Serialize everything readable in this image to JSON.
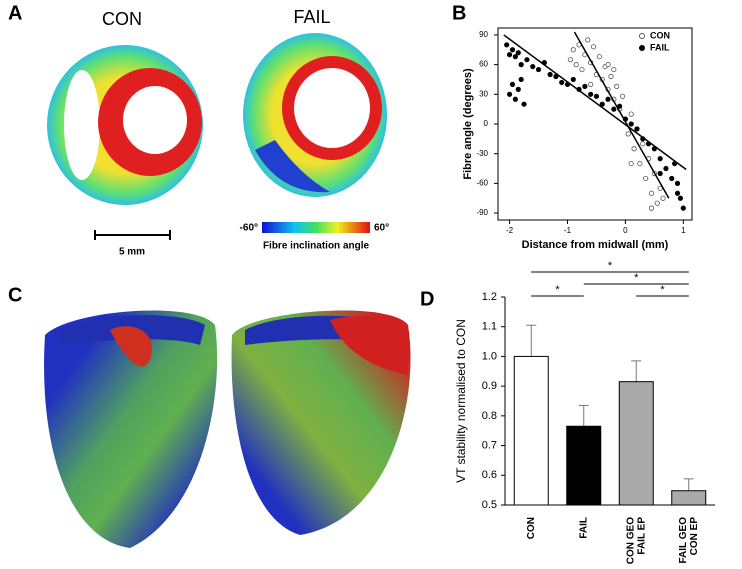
{
  "panels": {
    "a": "A",
    "b": "B",
    "c": "C",
    "d": "D"
  },
  "panel_a": {
    "labels": [
      "CON",
      "FAIL"
    ],
    "scale_bar": "5 mm",
    "colorbar": {
      "min": "-60°",
      "max": "60°",
      "label": "Fibre inclination angle"
    }
  },
  "chart_data": [
    {
      "type": "scatter",
      "xlabel": "Distance from midwall (mm)",
      "ylabel": "Fibre angle (degrees)",
      "xlim": [
        -2.2,
        1.15
      ],
      "ylim": [
        -97,
        97
      ],
      "xticks": [
        -2,
        -1,
        0,
        1
      ],
      "yticks": [
        -90,
        -60,
        -30,
        0,
        30,
        60,
        90
      ],
      "legend": "top-right",
      "series": [
        {
          "name": "CON",
          "color": "#555555",
          "marker": "open",
          "x": [
            -0.95,
            -0.9,
            -0.85,
            -0.8,
            -0.75,
            -0.7,
            -0.65,
            -0.6,
            -0.55,
            -0.5,
            -0.45,
            -0.4,
            -0.35,
            -0.3,
            -0.25,
            -0.2,
            -0.15,
            -0.1,
            -0.05,
            0,
            0.05,
            0.1,
            0.15,
            0.2,
            0.25,
            0.3,
            0.35,
            0.4,
            0.45,
            0.5,
            0.55,
            0.6,
            0.65,
            -0.3,
            0.1,
            0.45,
            -0.6,
            -0.2
          ],
          "y": [
            65,
            75,
            60,
            80,
            55,
            70,
            85,
            62,
            78,
            50,
            68,
            45,
            58,
            35,
            48,
            25,
            38,
            15,
            28,
            5,
            -10,
            10,
            -25,
            -5,
            -40,
            -20,
            -55,
            -35,
            -70,
            -50,
            -80,
            -65,
            -75,
            60,
            -40,
            -85,
            40,
            55
          ]
        },
        {
          "name": "FAIL",
          "color": "#000000",
          "marker": "filled",
          "x": [
            -2.05,
            -2.0,
            -1.95,
            -1.9,
            -1.85,
            -1.8,
            -1.7,
            -1.6,
            -1.5,
            -1.4,
            -1.3,
            -1.2,
            -1.1,
            -1.0,
            -0.9,
            -0.8,
            -0.7,
            -0.6,
            -0.5,
            -0.4,
            -0.3,
            -0.2,
            -0.1,
            0.0,
            0.1,
            0.2,
            0.3,
            0.4,
            0.5,
            0.6,
            0.7,
            0.8,
            0.9,
            0.95,
            1.0,
            -2.0,
            -1.95,
            -1.9,
            -1.85,
            -1.8,
            -1.75,
            0.85,
            0.9,
            0.6
          ],
          "y": [
            80,
            70,
            75,
            68,
            72,
            60,
            65,
            58,
            55,
            62,
            50,
            48,
            42,
            40,
            45,
            35,
            38,
            30,
            28,
            20,
            25,
            15,
            18,
            5,
            0,
            -5,
            -15,
            -20,
            -25,
            -35,
            -45,
            -55,
            -60,
            -75,
            -85,
            30,
            40,
            25,
            35,
            45,
            20,
            -40,
            -70,
            -50
          ]
        }
      ],
      "fit_lines": [
        {
          "x": [
            -0.88,
            0.75
          ],
          "y": [
            93,
            -75
          ]
        },
        {
          "x": [
            -2.1,
            1.05
          ],
          "y": [
            90,
            -46
          ]
        }
      ]
    },
    {
      "type": "bar",
      "ylabel": "VT stability normalised to CON",
      "categories": [
        [
          "CON"
        ],
        [
          "FAIL"
        ],
        [
          "CON GEO",
          "FAIL EP"
        ],
        [
          "FAIL GEO",
          "CON EP"
        ]
      ],
      "values": [
        1.0,
        0.765,
        0.915,
        0.548
      ],
      "errors": [
        0.105,
        0.07,
        0.07,
        0.04
      ],
      "colors": [
        "#ffffff",
        "#000000",
        "#aaaaaa",
        "#aaaaaa"
      ],
      "ylim": [
        0.5,
        1.2
      ],
      "yticks": [
        0.5,
        0.6,
        0.7,
        0.8,
        0.9,
        {
          "value": 1,
          "label": "1.0"
        },
        1.1,
        1.2
      ],
      "significance": [
        {
          "pair": [
            0,
            3
          ],
          "label": "*"
        },
        {
          "pair": [
            1,
            3
          ],
          "label": "*"
        },
        {
          "pair": [
            0,
            1
          ],
          "label": "*"
        },
        {
          "pair": [
            2,
            3
          ],
          "label": "*"
        }
      ]
    }
  ]
}
